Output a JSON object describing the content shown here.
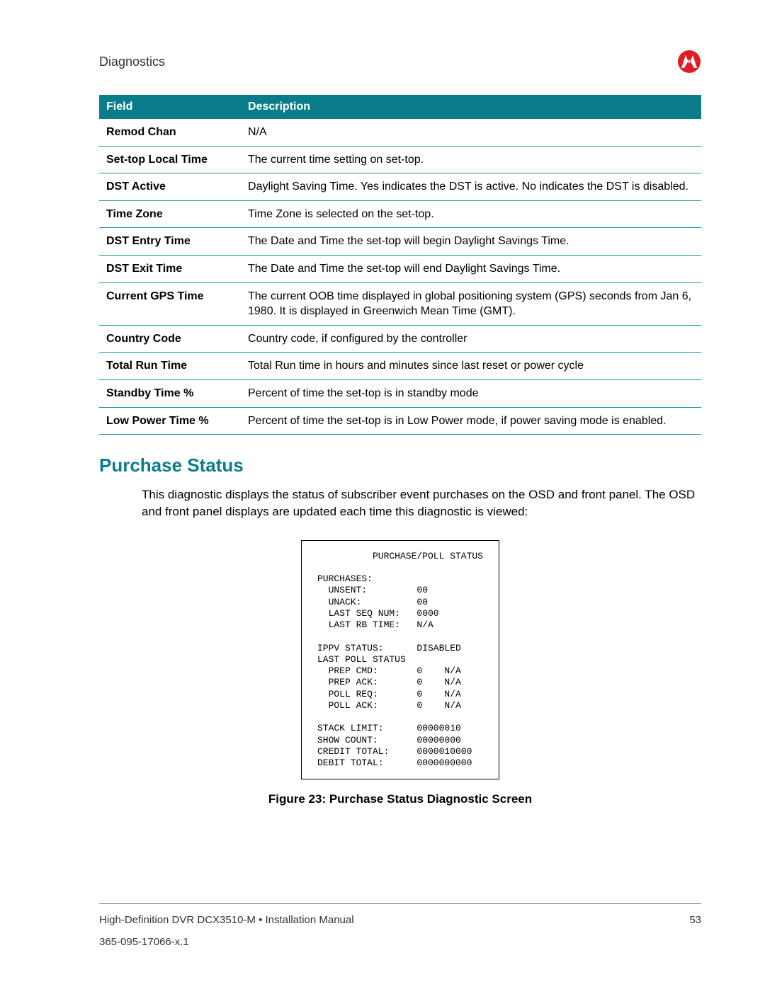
{
  "header": {
    "section": "Diagnostics",
    "logo_bg": "#e31b23",
    "logo_fg": "#ffffff"
  },
  "table": {
    "header_bg": "#0b7d8a",
    "border_color": "#0b9aa8",
    "columns": [
      "Field",
      "Description"
    ],
    "rows": [
      {
        "field": "Remod Chan",
        "desc": "N/A"
      },
      {
        "field": "Set-top Local Time",
        "desc": "The current time setting on set-top."
      },
      {
        "field": "DST Active",
        "desc": "Daylight Saving Time. Yes indicates the DST is active. No indicates the DST is disabled."
      },
      {
        "field": "Time Zone",
        "desc": "Time Zone is selected on the set-top."
      },
      {
        "field": "DST Entry Time",
        "desc": "The Date and Time the set-top will begin Daylight Savings Time."
      },
      {
        "field": "DST Exit Time",
        "desc": "The Date and Time the set-top will end Daylight Savings Time."
      },
      {
        "field": "Current GPS Time",
        "desc": "The current OOB time displayed in global positioning system (GPS) seconds from Jan 6, 1980. It is displayed in Greenwich Mean Time (GMT)."
      },
      {
        "field": "Country Code",
        "desc": "Country code, if configured by the controller"
      },
      {
        "field": "Total Run Time",
        "desc": "Total Run time in hours and minutes since last reset or power cycle"
      },
      {
        "field": "Standby Time %",
        "desc": "Percent of time the set-top is in standby mode"
      },
      {
        "field": "Low Power Time %",
        "desc": "Percent of time the set-top is in Low Power mode, if power saving mode is enabled."
      }
    ]
  },
  "section": {
    "heading": "Purchase Status",
    "body": "This diagnostic displays the status of subscriber event purchases on the OSD and front panel. The OSD and front panel displays are updated each time this diagnostic is viewed:"
  },
  "diagram": {
    "title": "PURCHASE/POLL STATUS",
    "groups": {
      "purchases": {
        "label": "PURCHASES:",
        "items": [
          {
            "k": "UNSENT:",
            "v": "00"
          },
          {
            "k": "UNACK:",
            "v": "00"
          },
          {
            "k": "LAST SEQ NUM:",
            "v": "0000"
          },
          {
            "k": "LAST RB TIME:",
            "v": "N/A"
          }
        ]
      },
      "ippv_status": {
        "k": "IPPV STATUS:",
        "v": "DISABLED"
      },
      "last_poll": {
        "label": "LAST POLL STATUS",
        "items": [
          {
            "k": "PREP CMD:",
            "v1": "0",
            "v2": "N/A"
          },
          {
            "k": "PREP ACK:",
            "v1": "0",
            "v2": "N/A"
          },
          {
            "k": "POLL REQ:",
            "v1": "0",
            "v2": "N/A"
          },
          {
            "k": "POLL ACK:",
            "v1": "0",
            "v2": "N/A"
          }
        ]
      },
      "totals": [
        {
          "k": "STACK LIMIT:",
          "v": "00000010"
        },
        {
          "k": "SHOW COUNT:",
          "v": "00000000"
        },
        {
          "k": "CREDIT TOTAL:",
          "v": "0000010000"
        },
        {
          "k": "DEBIT TOTAL:",
          "v": "0000000000"
        }
      ]
    }
  },
  "figure_caption": "Figure 23: Purchase Status Diagnostic Screen",
  "footer": {
    "line1_left": "High-Definition DVR DCX3510-M • Installation Manual",
    "line1_right": "53",
    "line2": "365-095-17066-x.1"
  }
}
